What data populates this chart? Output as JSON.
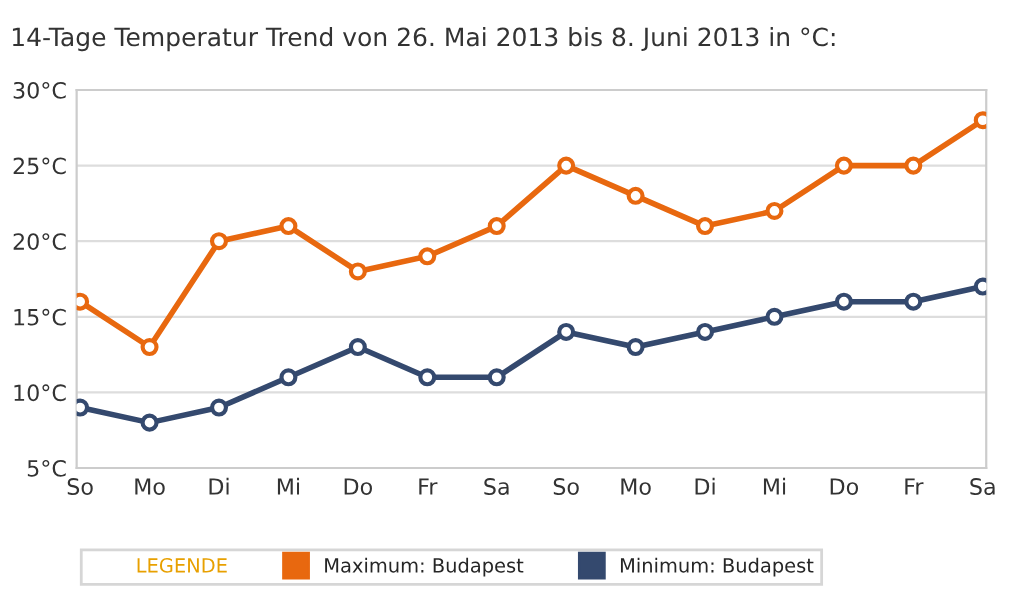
{
  "chart_data": {
    "type": "line",
    "title": "14-Tage Temperatur Trend von 26. Mai 2013 bis 8. Juni 2013 in °C:",
    "categories": [
      "So",
      "Mo",
      "Di",
      "Mi",
      "Do",
      "Fr",
      "Sa",
      "So",
      "Mo",
      "Di",
      "Mi",
      "Do",
      "Fr",
      "Sa"
    ],
    "series": [
      {
        "name": "Maximum: Budapest",
        "color": "#e8680f",
        "values": [
          16,
          13,
          20,
          21,
          18,
          19,
          21,
          25,
          23,
          21,
          22,
          25,
          25,
          28
        ]
      },
      {
        "name": "Minimum: Budapest",
        "color": "#34496e",
        "values": [
          9,
          8,
          9,
          11,
          13,
          11,
          11,
          14,
          13,
          14,
          15,
          16,
          16,
          17
        ]
      }
    ],
    "ylim": [
      5,
      30
    ],
    "yticks": [
      {
        "value": 5,
        "label": "5°C"
      },
      {
        "value": 10,
        "label": "10°C"
      },
      {
        "value": 15,
        "label": "15°C"
      },
      {
        "value": 20,
        "label": "20°C"
      },
      {
        "value": 25,
        "label": "25°C"
      },
      {
        "value": 30,
        "label": "30°C"
      }
    ],
    "grid": "y",
    "legend": "bottom",
    "legend_title": "LEGENDE",
    "marker": "circle",
    "line_style": "solid"
  }
}
